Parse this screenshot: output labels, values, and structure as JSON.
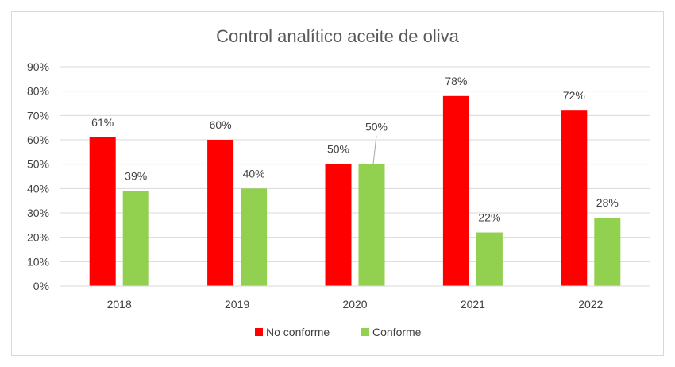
{
  "chart_data": {
    "type": "bar",
    "title": "Control analítico aceite de oliva",
    "categories": [
      "2018",
      "2019",
      "2020",
      "2021",
      "2022"
    ],
    "series": [
      {
        "name": "No conforme",
        "color": "#ff0000",
        "values": [
          61,
          60,
          50,
          78,
          72
        ]
      },
      {
        "name": "Conforme",
        "color": "#92d050",
        "values": [
          39,
          40,
          50,
          22,
          28
        ]
      }
    ],
    "data_labels": [
      [
        "61%",
        "60%",
        "50%",
        "78%",
        "72%"
      ],
      [
        "39%",
        "40%",
        "50%",
        "22%",
        "28%"
      ]
    ],
    "y_ticks": [
      "0%",
      "10%",
      "20%",
      "30%",
      "40%",
      "50%",
      "60%",
      "70%",
      "80%",
      "90%"
    ],
    "ylim": [
      0,
      90
    ],
    "xlabel": "",
    "ylabel": "",
    "grid": true,
    "legend_position": "bottom",
    "gridline_color": "#d9d9d9"
  }
}
